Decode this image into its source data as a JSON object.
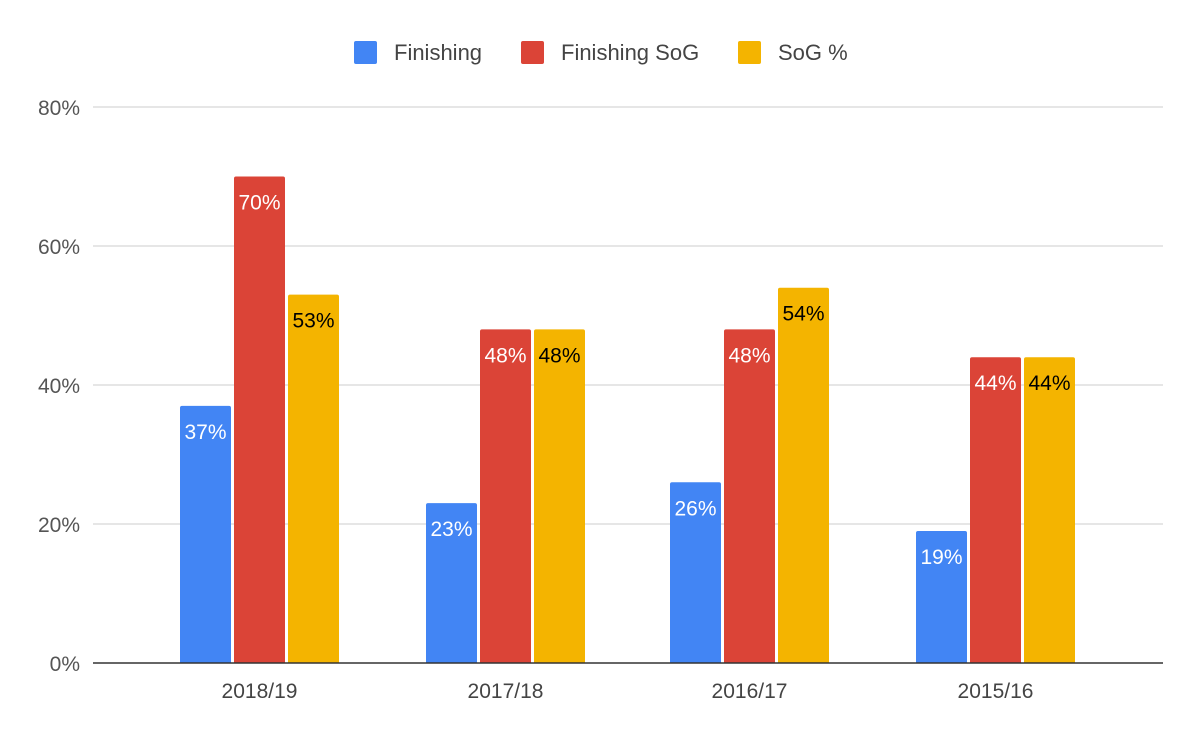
{
  "chart_data": {
    "type": "bar",
    "categories": [
      "2018/19",
      "2017/18",
      "2016/17",
      "2015/16"
    ],
    "series": [
      {
        "name": "Finishing",
        "color": "#4285f4",
        "label_color": "#ffffff",
        "values": [
          37,
          23,
          26,
          19
        ],
        "labels": [
          "37%",
          "23%",
          "26%",
          "19%"
        ]
      },
      {
        "name": "Finishing SoG",
        "color": "#db4437",
        "label_color": "#ffffff",
        "values": [
          70,
          48,
          48,
          44
        ],
        "labels": [
          "70%",
          "48%",
          "48%",
          "44%"
        ]
      },
      {
        "name": "SoG %",
        "color": "#f4b400",
        "label_color": "#000000",
        "values": [
          53,
          48,
          54,
          44
        ],
        "labels": [
          "53%",
          "48%",
          "54%",
          "44%"
        ]
      }
    ],
    "ylim": [
      0,
      80
    ],
    "y_ticks": [
      0,
      20,
      40,
      60,
      80
    ],
    "y_tick_labels": [
      "0%",
      "20%",
      "40%",
      "60%",
      "80%"
    ],
    "grid": true,
    "legend_position": "top-center",
    "title": "",
    "xlabel": "",
    "ylabel": ""
  }
}
